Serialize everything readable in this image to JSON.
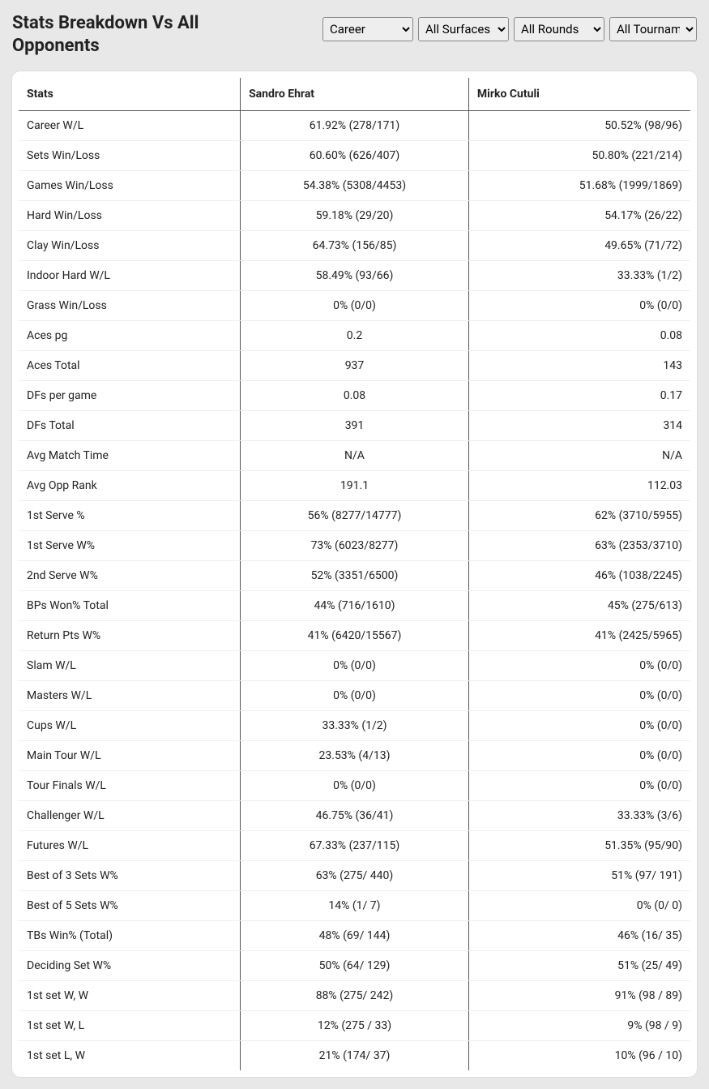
{
  "title": "Stats Breakdown Vs All Opponents",
  "filters": {
    "career": "Career",
    "surface": "All Surfaces",
    "round": "All Rounds",
    "tournament": "All Tournaments"
  },
  "columns": {
    "stat": "Stats",
    "p1": "Sandro Ehrat",
    "p2": "Mirko Cutuli"
  },
  "rows": [
    {
      "stat": "Career W/L",
      "p1": "61.92% (278/171)",
      "p2": "50.52% (98/96)"
    },
    {
      "stat": "Sets Win/Loss",
      "p1": "60.60% (626/407)",
      "p2": "50.80% (221/214)"
    },
    {
      "stat": "Games Win/Loss",
      "p1": "54.38% (5308/4453)",
      "p2": "51.68% (1999/1869)"
    },
    {
      "stat": "Hard Win/Loss",
      "p1": "59.18% (29/20)",
      "p2": "54.17% (26/22)"
    },
    {
      "stat": "Clay Win/Loss",
      "p1": "64.73% (156/85)",
      "p2": "49.65% (71/72)"
    },
    {
      "stat": "Indoor Hard W/L",
      "p1": "58.49% (93/66)",
      "p2": "33.33% (1/2)"
    },
    {
      "stat": "Grass Win/Loss",
      "p1": "0% (0/0)",
      "p2": "0% (0/0)"
    },
    {
      "stat": "Aces pg",
      "p1": "0.2",
      "p2": "0.08"
    },
    {
      "stat": "Aces Total",
      "p1": "937",
      "p2": "143"
    },
    {
      "stat": "DFs per game",
      "p1": "0.08",
      "p2": "0.17"
    },
    {
      "stat": "DFs Total",
      "p1": "391",
      "p2": "314"
    },
    {
      "stat": "Avg Match Time",
      "p1": "N/A",
      "p2": "N/A"
    },
    {
      "stat": "Avg Opp Rank",
      "p1": "191.1",
      "p2": "112.03"
    },
    {
      "stat": "1st Serve %",
      "p1": "56% (8277/14777)",
      "p2": "62% (3710/5955)"
    },
    {
      "stat": "1st Serve W%",
      "p1": "73% (6023/8277)",
      "p2": "63% (2353/3710)"
    },
    {
      "stat": "2nd Serve W%",
      "p1": "52% (3351/6500)",
      "p2": "46% (1038/2245)"
    },
    {
      "stat": "BPs Won% Total",
      "p1": "44% (716/1610)",
      "p2": "45% (275/613)"
    },
    {
      "stat": "Return Pts W%",
      "p1": "41% (6420/15567)",
      "p2": "41% (2425/5965)"
    },
    {
      "stat": "Slam W/L",
      "p1": "0% (0/0)",
      "p2": "0% (0/0)"
    },
    {
      "stat": "Masters W/L",
      "p1": "0% (0/0)",
      "p2": "0% (0/0)"
    },
    {
      "stat": "Cups W/L",
      "p1": "33.33% (1/2)",
      "p2": "0% (0/0)"
    },
    {
      "stat": "Main Tour W/L",
      "p1": "23.53% (4/13)",
      "p2": "0% (0/0)"
    },
    {
      "stat": "Tour Finals W/L",
      "p1": "0% (0/0)",
      "p2": "0% (0/0)"
    },
    {
      "stat": "Challenger W/L",
      "p1": "46.75% (36/41)",
      "p2": "33.33% (3/6)"
    },
    {
      "stat": "Futures W/L",
      "p1": "67.33% (237/115)",
      "p2": "51.35% (95/90)"
    },
    {
      "stat": "Best of 3 Sets W%",
      "p1": "63% (275/ 440)",
      "p2": "51% (97/ 191)"
    },
    {
      "stat": "Best of 5 Sets W%",
      "p1": "14% (1/ 7)",
      "p2": "0% (0/ 0)"
    },
    {
      "stat": "TBs Win% (Total)",
      "p1": "48% (69/ 144)",
      "p2": "46% (16/ 35)"
    },
    {
      "stat": "Deciding Set W%",
      "p1": "50% (64/ 129)",
      "p2": "51% (25/ 49)"
    },
    {
      "stat": "1st set W, W",
      "p1": "88% (275/ 242)",
      "p2": "91% (98 / 89)"
    },
    {
      "stat": "1st set W, L",
      "p1": "12% (275 / 33)",
      "p2": "9% (98 / 9)"
    },
    {
      "stat": "1st set L, W",
      "p1": "21% (174/ 37)",
      "p2": "10% (96 / 10)"
    }
  ]
}
